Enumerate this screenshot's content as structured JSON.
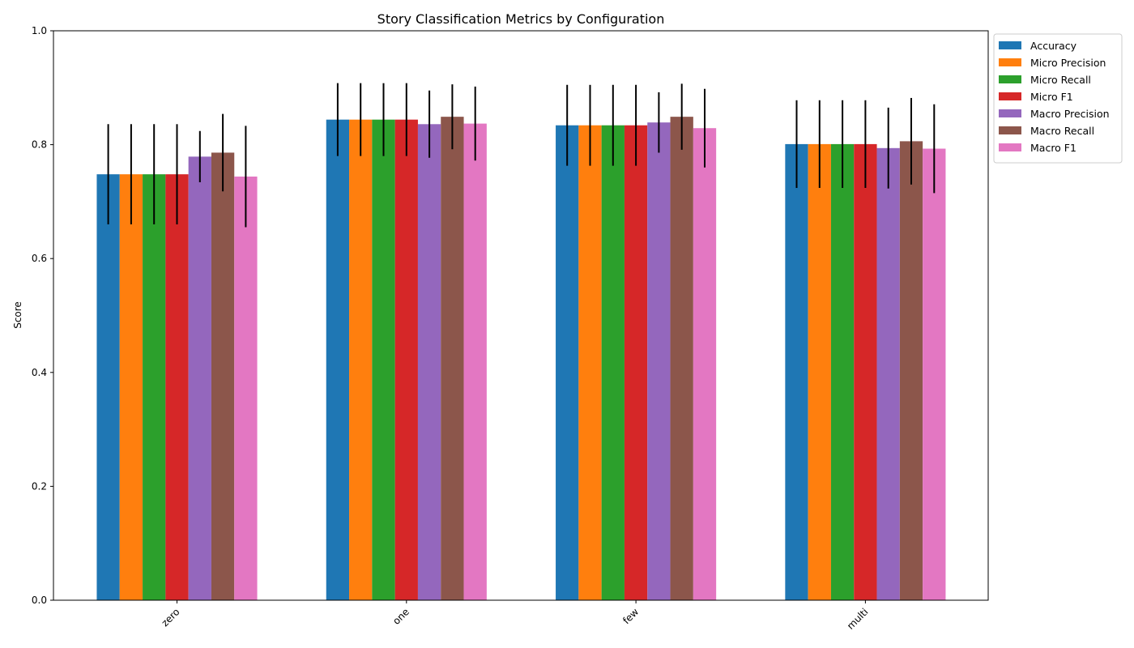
{
  "chart_data": {
    "type": "bar",
    "title": "Story Classification Metrics by Configuration",
    "xlabel": "",
    "ylabel": "Score",
    "ylim": [
      0,
      1.0
    ],
    "yticks": [
      "0.0",
      "0.2",
      "0.4",
      "0.6",
      "0.8",
      "1.0"
    ],
    "categories": [
      "zero",
      "one",
      "few",
      "multi"
    ],
    "legend_position": "outside-top-right",
    "grid": false,
    "series": [
      {
        "name": "Accuracy",
        "color": "#1f77b4",
        "values": [
          0.748,
          0.844,
          0.834,
          0.801
        ],
        "errors": [
          0.088,
          0.064,
          0.071,
          0.077
        ]
      },
      {
        "name": "Micro Precision",
        "color": "#ff7f0e",
        "values": [
          0.748,
          0.844,
          0.834,
          0.801
        ],
        "errors": [
          0.088,
          0.064,
          0.071,
          0.077
        ]
      },
      {
        "name": "Micro Recall",
        "color": "#2ca02c",
        "values": [
          0.748,
          0.844,
          0.834,
          0.801
        ],
        "errors": [
          0.088,
          0.064,
          0.071,
          0.077
        ]
      },
      {
        "name": "Micro F1",
        "color": "#d62728",
        "values": [
          0.748,
          0.844,
          0.834,
          0.801
        ],
        "errors": [
          0.088,
          0.064,
          0.071,
          0.077
        ]
      },
      {
        "name": "Macro Precision",
        "color": "#9467bd",
        "values": [
          0.779,
          0.836,
          0.839,
          0.794
        ],
        "errors": [
          0.045,
          0.059,
          0.053,
          0.071
        ]
      },
      {
        "name": "Macro Recall",
        "color": "#8c564b",
        "values": [
          0.786,
          0.849,
          0.849,
          0.806
        ],
        "errors": [
          0.068,
          0.057,
          0.058,
          0.076
        ]
      },
      {
        "name": "Macro F1",
        "color": "#e377c2",
        "values": [
          0.744,
          0.837,
          0.829,
          0.793
        ],
        "errors": [
          0.089,
          0.065,
          0.069,
          0.078
        ]
      }
    ]
  }
}
